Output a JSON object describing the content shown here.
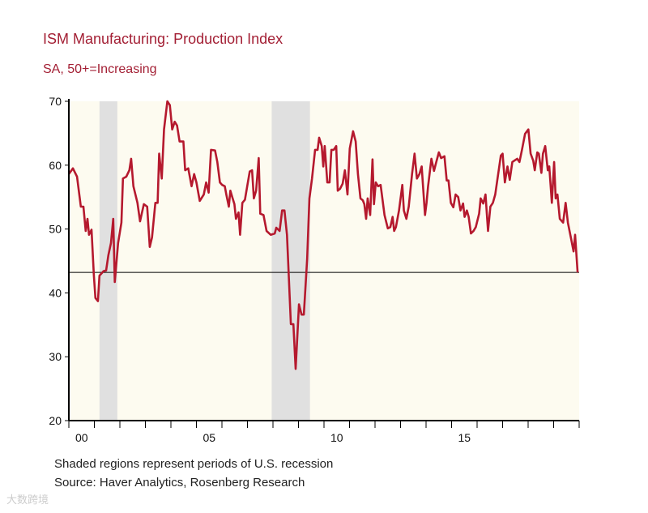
{
  "chart_data": {
    "type": "line",
    "title": "ISM Manufacturing: Production Index",
    "subtitle": "SA, 50+=Increasing",
    "xlabel": "",
    "ylabel": "",
    "ylim": [
      20,
      70
    ],
    "xlim": [
      2000,
      2020
    ],
    "yticks": [
      20,
      30,
      40,
      50,
      60,
      70
    ],
    "xtick_labels": [
      {
        "year": 2000,
        "label": "00"
      },
      {
        "year": 2005,
        "label": "05"
      },
      {
        "year": 2010,
        "label": "10"
      },
      {
        "year": 2015,
        "label": "15"
      }
    ],
    "reference_line": 43.2,
    "recessions": [
      [
        2001.2,
        2001.9
      ],
      [
        2007.95,
        2009.45
      ]
    ],
    "colors": {
      "line": "#b5192e",
      "recession": "#e0e0e0",
      "plot_bg": "#fdfbf0",
      "title": "#a31f34"
    },
    "series": [
      {
        "name": "ISM Manufacturing: Production Index",
        "points": [
          [
            2000.0,
            58.6
          ],
          [
            2000.16,
            59.5
          ],
          [
            2000.32,
            58.2
          ],
          [
            2000.47,
            53.5
          ],
          [
            2000.57,
            53.5
          ],
          [
            2000.66,
            49.7
          ],
          [
            2000.73,
            51.6
          ],
          [
            2000.79,
            49.1
          ],
          [
            2000.89,
            49.9
          ],
          [
            2000.98,
            42.7
          ],
          [
            2001.04,
            39.2
          ],
          [
            2001.14,
            38.7
          ],
          [
            2001.2,
            42.7
          ],
          [
            2001.36,
            43.4
          ],
          [
            2001.46,
            43.5
          ],
          [
            2001.55,
            45.9
          ],
          [
            2001.65,
            47.8
          ],
          [
            2001.74,
            51.6
          ],
          [
            2001.8,
            41.7
          ],
          [
            2001.93,
            47.8
          ],
          [
            2002.06,
            51.0
          ],
          [
            2002.12,
            57.9
          ],
          [
            2002.25,
            58.2
          ],
          [
            2002.37,
            59.2
          ],
          [
            2002.44,
            61.0
          ],
          [
            2002.53,
            56.7
          ],
          [
            2002.69,
            54.1
          ],
          [
            2002.79,
            51.2
          ],
          [
            2002.94,
            53.9
          ],
          [
            2003.07,
            53.5
          ],
          [
            2003.17,
            47.2
          ],
          [
            2003.26,
            48.7
          ],
          [
            2003.39,
            54.1
          ],
          [
            2003.48,
            54.1
          ],
          [
            2003.54,
            61.8
          ],
          [
            2003.64,
            57.9
          ],
          [
            2003.73,
            65.6
          ],
          [
            2003.86,
            70.0
          ],
          [
            2003.96,
            69.4
          ],
          [
            2004.05,
            65.6
          ],
          [
            2004.15,
            66.8
          ],
          [
            2004.24,
            66.2
          ],
          [
            2004.34,
            63.7
          ],
          [
            2004.49,
            63.7
          ],
          [
            2004.56,
            59.2
          ],
          [
            2004.68,
            59.5
          ],
          [
            2004.81,
            56.7
          ],
          [
            2004.91,
            58.6
          ],
          [
            2005.0,
            57.3
          ],
          [
            2005.13,
            54.4
          ],
          [
            2005.29,
            55.4
          ],
          [
            2005.38,
            57.3
          ],
          [
            2005.48,
            55.7
          ],
          [
            2005.57,
            62.4
          ],
          [
            2005.73,
            62.3
          ],
          [
            2005.82,
            60.5
          ],
          [
            2005.92,
            57.3
          ],
          [
            2006.01,
            56.9
          ],
          [
            2006.11,
            56.7
          ],
          [
            2006.17,
            55.4
          ],
          [
            2006.27,
            53.5
          ],
          [
            2006.33,
            56.0
          ],
          [
            2006.42,
            54.8
          ],
          [
            2006.49,
            53.9
          ],
          [
            2006.55,
            51.6
          ],
          [
            2006.65,
            52.6
          ],
          [
            2006.71,
            49.1
          ],
          [
            2006.8,
            54.1
          ],
          [
            2006.9,
            54.6
          ],
          [
            2006.99,
            56.7
          ],
          [
            2007.09,
            59.0
          ],
          [
            2007.18,
            59.2
          ],
          [
            2007.25,
            54.8
          ],
          [
            2007.34,
            56.0
          ],
          [
            2007.44,
            61.1
          ],
          [
            2007.5,
            52.4
          ],
          [
            2007.63,
            52.2
          ],
          [
            2007.75,
            49.7
          ],
          [
            2007.91,
            49.1
          ],
          [
            2008.07,
            49.3
          ],
          [
            2008.13,
            50.2
          ],
          [
            2008.26,
            49.7
          ],
          [
            2008.36,
            52.9
          ],
          [
            2008.45,
            52.9
          ],
          [
            2008.55,
            49.1
          ],
          [
            2008.7,
            35.1
          ],
          [
            2008.8,
            35.1
          ],
          [
            2008.89,
            28.1
          ],
          [
            2009.02,
            38.2
          ],
          [
            2009.12,
            36.6
          ],
          [
            2009.21,
            36.6
          ],
          [
            2009.34,
            45.3
          ],
          [
            2009.43,
            54.8
          ],
          [
            2009.53,
            57.9
          ],
          [
            2009.65,
            62.4
          ],
          [
            2009.75,
            62.4
          ],
          [
            2009.81,
            64.3
          ],
          [
            2009.91,
            63.0
          ],
          [
            2009.97,
            59.8
          ],
          [
            2010.03,
            63.0
          ],
          [
            2010.13,
            57.3
          ],
          [
            2010.22,
            57.3
          ],
          [
            2010.29,
            62.4
          ],
          [
            2010.38,
            62.4
          ],
          [
            2010.48,
            63.0
          ],
          [
            2010.54,
            56.0
          ],
          [
            2010.63,
            56.3
          ],
          [
            2010.73,
            57.1
          ],
          [
            2010.82,
            59.2
          ],
          [
            2010.92,
            55.4
          ],
          [
            2011.01,
            62.6
          ],
          [
            2011.14,
            65.3
          ],
          [
            2011.24,
            63.7
          ],
          [
            2011.33,
            58.6
          ],
          [
            2011.43,
            54.8
          ],
          [
            2011.52,
            54.5
          ],
          [
            2011.58,
            53.9
          ],
          [
            2011.65,
            51.6
          ],
          [
            2011.71,
            54.8
          ],
          [
            2011.81,
            52.2
          ],
          [
            2011.9,
            60.9
          ],
          [
            2011.96,
            53.9
          ],
          [
            2012.03,
            57.3
          ],
          [
            2012.12,
            56.7
          ],
          [
            2012.22,
            56.9
          ],
          [
            2012.37,
            52.2
          ],
          [
            2012.5,
            50.1
          ],
          [
            2012.6,
            50.3
          ],
          [
            2012.69,
            51.9
          ],
          [
            2012.75,
            49.7
          ],
          [
            2012.82,
            50.3
          ],
          [
            2012.94,
            52.9
          ],
          [
            2013.07,
            56.9
          ],
          [
            2013.13,
            52.9
          ],
          [
            2013.23,
            51.6
          ],
          [
            2013.32,
            53.5
          ],
          [
            2013.45,
            58.6
          ],
          [
            2013.55,
            61.8
          ],
          [
            2013.64,
            57.9
          ],
          [
            2013.74,
            58.6
          ],
          [
            2013.83,
            59.8
          ],
          [
            2013.96,
            52.2
          ],
          [
            2014.02,
            54.1
          ],
          [
            2014.08,
            56.7
          ],
          [
            2014.21,
            61.0
          ],
          [
            2014.31,
            59.1
          ],
          [
            2014.4,
            60.5
          ],
          [
            2014.5,
            62.0
          ],
          [
            2014.59,
            61.1
          ],
          [
            2014.72,
            61.4
          ],
          [
            2014.81,
            57.6
          ],
          [
            2014.88,
            57.6
          ],
          [
            2014.97,
            54.1
          ],
          [
            2015.07,
            53.4
          ],
          [
            2015.16,
            55.4
          ],
          [
            2015.26,
            55.0
          ],
          [
            2015.35,
            52.9
          ],
          [
            2015.45,
            54.0
          ],
          [
            2015.51,
            51.9
          ],
          [
            2015.6,
            52.9
          ],
          [
            2015.67,
            51.9
          ],
          [
            2015.76,
            49.3
          ],
          [
            2015.86,
            49.7
          ],
          [
            2015.95,
            50.3
          ],
          [
            2016.08,
            52.4
          ],
          [
            2016.14,
            54.8
          ],
          [
            2016.24,
            54.0
          ],
          [
            2016.33,
            55.4
          ],
          [
            2016.43,
            49.7
          ],
          [
            2016.52,
            53.5
          ],
          [
            2016.62,
            54.1
          ],
          [
            2016.71,
            55.4
          ],
          [
            2016.93,
            61.5
          ],
          [
            2017.0,
            61.8
          ],
          [
            2017.09,
            57.3
          ],
          [
            2017.19,
            59.8
          ],
          [
            2017.28,
            57.7
          ],
          [
            2017.38,
            60.5
          ],
          [
            2017.57,
            61.0
          ],
          [
            2017.66,
            60.5
          ],
          [
            2017.76,
            62.4
          ],
          [
            2017.88,
            64.9
          ],
          [
            2018.01,
            65.6
          ],
          [
            2018.1,
            61.8
          ],
          [
            2018.2,
            60.7
          ],
          [
            2018.26,
            59.2
          ],
          [
            2018.36,
            62.0
          ],
          [
            2018.42,
            61.8
          ],
          [
            2018.52,
            58.8
          ],
          [
            2018.58,
            61.8
          ],
          [
            2018.67,
            63.0
          ],
          [
            2018.77,
            59.2
          ],
          [
            2018.83,
            59.8
          ],
          [
            2018.93,
            54.1
          ],
          [
            2019.02,
            60.5
          ],
          [
            2019.08,
            54.8
          ],
          [
            2019.15,
            55.4
          ],
          [
            2019.24,
            51.6
          ],
          [
            2019.37,
            51.0
          ],
          [
            2019.47,
            54.1
          ],
          [
            2019.56,
            51.0
          ],
          [
            2019.69,
            48.4
          ],
          [
            2019.78,
            46.5
          ],
          [
            2019.84,
            49.1
          ],
          [
            2019.94,
            43.2
          ]
        ]
      }
    ],
    "notes": [
      "Shaded regions represent periods of U.S. recession",
      "Source: Haver Analytics, Rosenberg Research"
    ],
    "watermark": "大数跨境"
  }
}
